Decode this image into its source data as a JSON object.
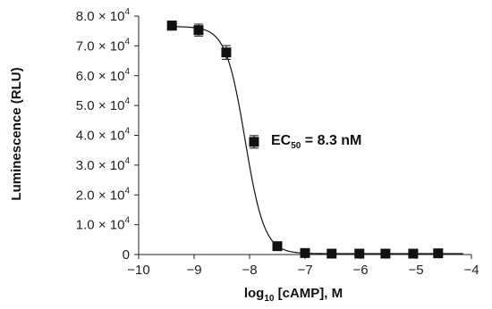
{
  "chart_data": {
    "type": "scatter",
    "xlabel": {
      "prefix": "log",
      "sub": "10",
      "suffix": " [cAMP], M"
    },
    "ylabel": "Luminescence (RLU)",
    "xlim": [
      -10,
      -4
    ],
    "ylim": [
      0,
      80000
    ],
    "x_ticks": [
      {
        "value": -10,
        "label": "−10"
      },
      {
        "value": -9,
        "label": "−9"
      },
      {
        "value": -8,
        "label": "−8"
      },
      {
        "value": -7,
        "label": "−7"
      },
      {
        "value": -6,
        "label": "−6"
      },
      {
        "value": -5,
        "label": "−5"
      },
      {
        "value": -4,
        "label": "−4"
      }
    ],
    "y_ticks": [
      {
        "value": 0,
        "mant": "0",
        "times": "",
        "base": "",
        "exp": ""
      },
      {
        "value": 10000,
        "mant": "1.0",
        "times": " × ",
        "base": "10",
        "exp": "4"
      },
      {
        "value": 20000,
        "mant": "2.0",
        "times": " × ",
        "base": "10",
        "exp": "4"
      },
      {
        "value": 30000,
        "mant": "3.0",
        "times": " × ",
        "base": "10",
        "exp": "4"
      },
      {
        "value": 40000,
        "mant": "4.0",
        "times": " × ",
        "base": "10",
        "exp": "4"
      },
      {
        "value": 50000,
        "mant": "5.0",
        "times": " × ",
        "base": "10",
        "exp": "4"
      },
      {
        "value": 60000,
        "mant": "6.0",
        "times": " × ",
        "base": "10",
        "exp": "4"
      },
      {
        "value": 70000,
        "mant": "7.0",
        "times": " × ",
        "base": "10",
        "exp": "4"
      },
      {
        "value": 80000,
        "mant": "8.0",
        "times": " × ",
        "base": "10",
        "exp": "4"
      }
    ],
    "points": [
      {
        "x": -9.4,
        "y": 76800,
        "err": 1500
      },
      {
        "x": -8.92,
        "y": 75300,
        "err": 2000
      },
      {
        "x": -8.42,
        "y": 67800,
        "err": 2300
      },
      {
        "x": -7.92,
        "y": 37800,
        "err": 2100
      },
      {
        "x": -7.5,
        "y": 2800,
        "err": 500
      },
      {
        "x": -7.0,
        "y": 500,
        "err": 200
      },
      {
        "x": -6.52,
        "y": 300,
        "err": 150
      },
      {
        "x": -6.02,
        "y": 300,
        "err": 150
      },
      {
        "x": -5.55,
        "y": 300,
        "err": 150
      },
      {
        "x": -5.05,
        "y": 300,
        "err": 150
      },
      {
        "x": -4.6,
        "y": 400,
        "err": 150
      }
    ],
    "fit": {
      "model": "four-parameter logistic",
      "top": 76500,
      "bottom": 300,
      "log_ec50": -8.08,
      "hill": -2.5
    },
    "annotation": {
      "prefix": "EC",
      "sub": "50",
      "suffix": " = 8.3 nM"
    },
    "grid": false,
    "legend": "none",
    "marker_color": "#111111",
    "line_color": "#111111"
  }
}
